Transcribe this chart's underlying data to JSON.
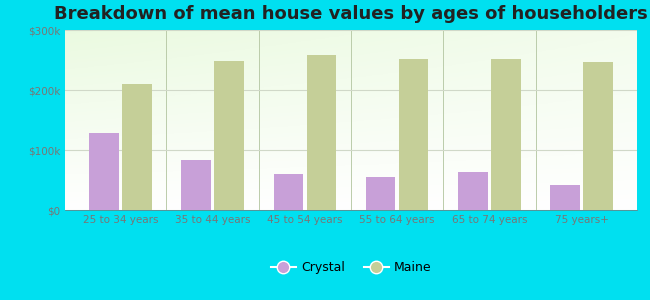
{
  "title": "Breakdown of mean house values by ages of householders",
  "categories": [
    "25 to 34 years",
    "35 to 44 years",
    "45 to 54 years",
    "55 to 64 years",
    "65 to 74 years",
    "75 years+"
  ],
  "crystal_values": [
    128000,
    83000,
    60000,
    55000,
    63000,
    42000
  ],
  "maine_values": [
    210000,
    248000,
    258000,
    252000,
    252000,
    246000
  ],
  "crystal_color": "#c8a0d8",
  "maine_color": "#c5cf98",
  "background_color": "#00e0f0",
  "ylim": [
    0,
    300000
  ],
  "yticks": [
    0,
    100000,
    200000,
    300000
  ],
  "ytick_labels": [
    "$0",
    "$100k",
    "$200k",
    "$300k"
  ],
  "legend_crystal": "Crystal",
  "legend_maine": "Maine",
  "title_fontsize": 13,
  "bar_width": 0.32,
  "grid_color": "#d0d8c8",
  "tick_color": "#777777",
  "separator_color": "#bbccaa"
}
